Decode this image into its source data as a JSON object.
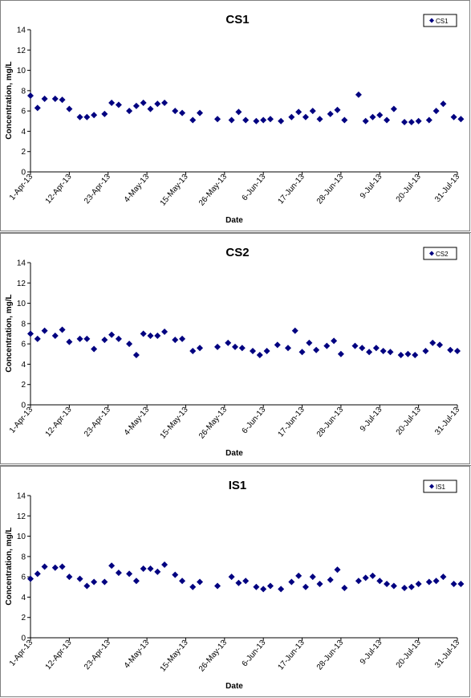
{
  "chart_data": [
    {
      "type": "scatter",
      "title": "CS1",
      "xlabel": "Date",
      "ylabel": "Concentration, mg/L",
      "ylim": [
        0,
        14
      ],
      "yticks": [
        0,
        2,
        4,
        6,
        8,
        10,
        12,
        14
      ],
      "xticks": [
        "1-Apr-13",
        "12-Apr-13",
        "23-Apr-13",
        "4-May-13",
        "15-May-13",
        "26-May-13",
        "6-Jun-13",
        "17-Jun-13",
        "28-Jun-13",
        "9-Jul-13",
        "20-Jul-13",
        "31-Jul-13"
      ],
      "xlim": [
        "2013-04-01",
        "2013-07-31"
      ],
      "grid": false,
      "legend": "top-right",
      "series": [
        {
          "name": "CS1",
          "color": "#000080",
          "points": [
            [
              "2013-04-01",
              7.5
            ],
            [
              "2013-04-03",
              6.3
            ],
            [
              "2013-04-05",
              7.2
            ],
            [
              "2013-04-08",
              7.2
            ],
            [
              "2013-04-10",
              7.1
            ],
            [
              "2013-04-12",
              6.2
            ],
            [
              "2013-04-15",
              5.4
            ],
            [
              "2013-04-17",
              5.4
            ],
            [
              "2013-04-19",
              5.6
            ],
            [
              "2013-04-22",
              5.7
            ],
            [
              "2013-04-24",
              6.8
            ],
            [
              "2013-04-26",
              6.6
            ],
            [
              "2013-04-29",
              6.0
            ],
            [
              "2013-05-01",
              6.5
            ],
            [
              "2013-05-03",
              6.8
            ],
            [
              "2013-05-05",
              6.2
            ],
            [
              "2013-05-07",
              6.7
            ],
            [
              "2013-05-09",
              6.8
            ],
            [
              "2013-05-12",
              6.0
            ],
            [
              "2013-05-14",
              5.8
            ],
            [
              "2013-05-17",
              5.1
            ],
            [
              "2013-05-19",
              5.8
            ],
            [
              "2013-05-24",
              5.2
            ],
            [
              "2013-05-28",
              5.1
            ],
            [
              "2013-05-30",
              5.9
            ],
            [
              "2013-06-01",
              5.1
            ],
            [
              "2013-06-04",
              5.0
            ],
            [
              "2013-06-06",
              5.1
            ],
            [
              "2013-06-08",
              5.2
            ],
            [
              "2013-06-11",
              5.0
            ],
            [
              "2013-06-14",
              5.4
            ],
            [
              "2013-06-16",
              5.9
            ],
            [
              "2013-06-18",
              5.4
            ],
            [
              "2013-06-20",
              6.0
            ],
            [
              "2013-06-22",
              5.2
            ],
            [
              "2013-06-25",
              5.7
            ],
            [
              "2013-06-27",
              6.1
            ],
            [
              "2013-06-29",
              5.1
            ],
            [
              "2013-07-03",
              7.6
            ],
            [
              "2013-07-05",
              5.0
            ],
            [
              "2013-07-07",
              5.4
            ],
            [
              "2013-07-09",
              5.6
            ],
            [
              "2013-07-11",
              5.1
            ],
            [
              "2013-07-13",
              6.2
            ],
            [
              "2013-07-16",
              4.9
            ],
            [
              "2013-07-18",
              4.9
            ],
            [
              "2013-07-20",
              5.0
            ],
            [
              "2013-07-23",
              5.1
            ],
            [
              "2013-07-25",
              6.0
            ],
            [
              "2013-07-27",
              6.7
            ],
            [
              "2013-07-30",
              5.4
            ],
            [
              "2013-08-01",
              5.2
            ]
          ]
        }
      ]
    },
    {
      "type": "scatter",
      "title": "CS2",
      "xlabel": "Date",
      "ylabel": "Concentration, mg/L",
      "ylim": [
        0,
        14
      ],
      "yticks": [
        0,
        2,
        4,
        6,
        8,
        10,
        12,
        14
      ],
      "xticks": [
        "1-Apr-13",
        "12-Apr-13",
        "23-Apr-13",
        "4-May-13",
        "15-May-13",
        "26-May-13",
        "6-Jun-13",
        "17-Jun-13",
        "28-Jun-13",
        "9-Jul-13",
        "20-Jul-13",
        "31-Jul-13"
      ],
      "xlim": [
        "2013-04-01",
        "2013-07-31"
      ],
      "grid": false,
      "legend": "top-right",
      "series": [
        {
          "name": "CS2",
          "color": "#000080",
          "points": [
            [
              "2013-04-01",
              7.0
            ],
            [
              "2013-04-03",
              6.5
            ],
            [
              "2013-04-05",
              7.3
            ],
            [
              "2013-04-08",
              6.8
            ],
            [
              "2013-04-10",
              7.4
            ],
            [
              "2013-04-12",
              6.2
            ],
            [
              "2013-04-15",
              6.5
            ],
            [
              "2013-04-17",
              6.5
            ],
            [
              "2013-04-19",
              5.5
            ],
            [
              "2013-04-22",
              6.4
            ],
            [
              "2013-04-24",
              6.9
            ],
            [
              "2013-04-26",
              6.5
            ],
            [
              "2013-04-29",
              6.0
            ],
            [
              "2013-05-01",
              4.9
            ],
            [
              "2013-05-03",
              7.0
            ],
            [
              "2013-05-05",
              6.8
            ],
            [
              "2013-05-07",
              6.8
            ],
            [
              "2013-05-09",
              7.2
            ],
            [
              "2013-05-12",
              6.4
            ],
            [
              "2013-05-14",
              6.5
            ],
            [
              "2013-05-17",
              5.3
            ],
            [
              "2013-05-19",
              5.6
            ],
            [
              "2013-05-24",
              5.7
            ],
            [
              "2013-05-27",
              6.1
            ],
            [
              "2013-05-29",
              5.7
            ],
            [
              "2013-05-31",
              5.6
            ],
            [
              "2013-06-03",
              5.3
            ],
            [
              "2013-06-05",
              4.9
            ],
            [
              "2013-06-07",
              5.3
            ],
            [
              "2013-06-10",
              5.9
            ],
            [
              "2013-06-13",
              5.6
            ],
            [
              "2013-06-15",
              7.3
            ],
            [
              "2013-06-17",
              5.2
            ],
            [
              "2013-06-19",
              6.1
            ],
            [
              "2013-06-21",
              5.4
            ],
            [
              "2013-06-24",
              5.8
            ],
            [
              "2013-06-26",
              6.3
            ],
            [
              "2013-06-28",
              5.0
            ],
            [
              "2013-07-02",
              5.8
            ],
            [
              "2013-07-04",
              5.6
            ],
            [
              "2013-07-06",
              5.2
            ],
            [
              "2013-07-08",
              5.6
            ],
            [
              "2013-07-10",
              5.3
            ],
            [
              "2013-07-12",
              5.2
            ],
            [
              "2013-07-15",
              4.9
            ],
            [
              "2013-07-17",
              5.0
            ],
            [
              "2013-07-19",
              4.9
            ],
            [
              "2013-07-22",
              5.3
            ],
            [
              "2013-07-24",
              6.1
            ],
            [
              "2013-07-26",
              5.9
            ],
            [
              "2013-07-29",
              5.4
            ],
            [
              "2013-07-31",
              5.3
            ]
          ]
        }
      ]
    },
    {
      "type": "scatter",
      "title": "IS1",
      "xlabel": "Date",
      "ylabel": "Concentration, mg/L",
      "ylim": [
        0,
        14
      ],
      "yticks": [
        0,
        2,
        4,
        6,
        8,
        10,
        12,
        14
      ],
      "xticks": [
        "1-Apr-13",
        "12-Apr-13",
        "23-Apr-13",
        "4-May-13",
        "15-May-13",
        "26-May-13",
        "6-Jun-13",
        "17-Jun-13",
        "28-Jun-13",
        "9-Jul-13",
        "20-Jul-13",
        "31-Jul-13"
      ],
      "xlim": [
        "2013-04-01",
        "2013-07-31"
      ],
      "grid": false,
      "legend": "top-right",
      "series": [
        {
          "name": "IS1",
          "color": "#000080",
          "points": [
            [
              "2013-04-01",
              5.8
            ],
            [
              "2013-04-03",
              6.3
            ],
            [
              "2013-04-05",
              7.0
            ],
            [
              "2013-04-08",
              6.9
            ],
            [
              "2013-04-10",
              7.0
            ],
            [
              "2013-04-12",
              6.0
            ],
            [
              "2013-04-15",
              5.8
            ],
            [
              "2013-04-17",
              5.1
            ],
            [
              "2013-04-19",
              5.5
            ],
            [
              "2013-04-22",
              5.5
            ],
            [
              "2013-04-24",
              7.1
            ],
            [
              "2013-04-26",
              6.4
            ],
            [
              "2013-04-29",
              6.3
            ],
            [
              "2013-05-01",
              5.6
            ],
            [
              "2013-05-03",
              6.8
            ],
            [
              "2013-05-05",
              6.8
            ],
            [
              "2013-05-07",
              6.5
            ],
            [
              "2013-05-09",
              7.2
            ],
            [
              "2013-05-12",
              6.2
            ],
            [
              "2013-05-14",
              5.6
            ],
            [
              "2013-05-17",
              5.0
            ],
            [
              "2013-05-19",
              5.5
            ],
            [
              "2013-05-24",
              5.1
            ],
            [
              "2013-05-28",
              6.0
            ],
            [
              "2013-05-30",
              5.4
            ],
            [
              "2013-06-01",
              5.6
            ],
            [
              "2013-06-04",
              5.0
            ],
            [
              "2013-06-06",
              4.8
            ],
            [
              "2013-06-08",
              5.1
            ],
            [
              "2013-06-11",
              4.8
            ],
            [
              "2013-06-14",
              5.5
            ],
            [
              "2013-06-16",
              6.1
            ],
            [
              "2013-06-18",
              5.0
            ],
            [
              "2013-06-20",
              6.0
            ],
            [
              "2013-06-22",
              5.3
            ],
            [
              "2013-06-25",
              5.7
            ],
            [
              "2013-06-27",
              6.7
            ],
            [
              "2013-06-29",
              4.9
            ],
            [
              "2013-07-03",
              5.6
            ],
            [
              "2013-07-05",
              5.9
            ],
            [
              "2013-07-07",
              6.1
            ],
            [
              "2013-07-09",
              5.6
            ],
            [
              "2013-07-11",
              5.3
            ],
            [
              "2013-07-13",
              5.1
            ],
            [
              "2013-07-16",
              4.9
            ],
            [
              "2013-07-18",
              5.0
            ],
            [
              "2013-07-20",
              5.3
            ],
            [
              "2013-07-23",
              5.5
            ],
            [
              "2013-07-25",
              5.6
            ],
            [
              "2013-07-27",
              6.0
            ],
            [
              "2013-07-30",
              5.3
            ],
            [
              "2013-08-01",
              5.3
            ]
          ]
        }
      ]
    }
  ]
}
